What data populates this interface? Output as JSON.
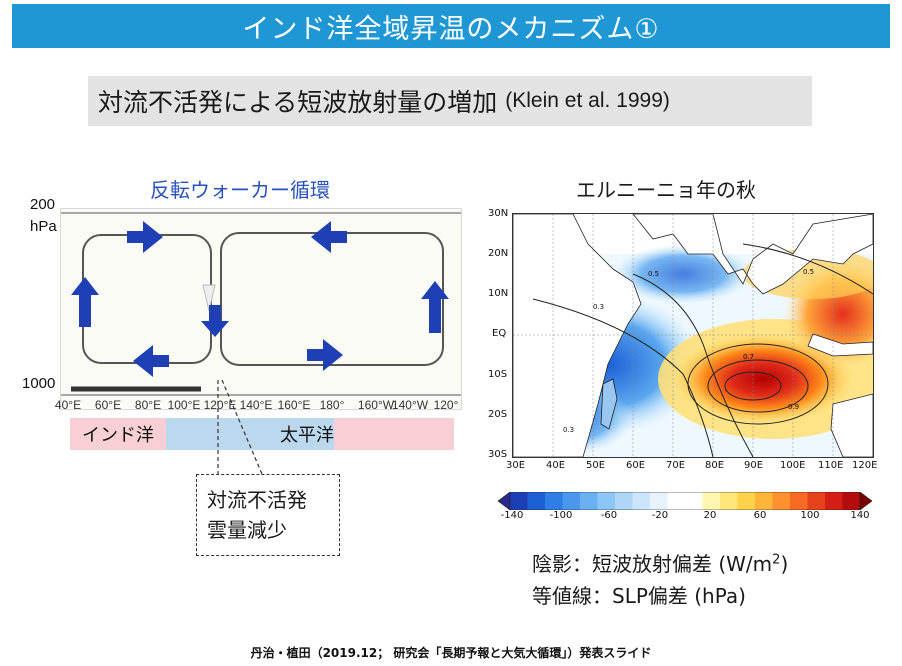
{
  "slide": {
    "title": "インド洋全域昇温のメカニズム①",
    "subtitle": "対流不活発による短波放射量の増加",
    "subtitle_ref": "(Klein et al. 1999)",
    "footer": "丹治・植田（2019.12； 研究会「長期予報と大気大循環」）発表スライド"
  },
  "walker_panel": {
    "title": "反転ウォーカー循環",
    "top_pressure_label": "200",
    "top_pressure_unit": "hPa",
    "bottom_pressure_label": "1000",
    "longitudes": [
      "40°E",
      "60°E",
      "80°E",
      "100°E",
      "120°E",
      "140°E",
      "160°E",
      "180°",
      "160°W",
      "140°W",
      "120°"
    ],
    "ocean_labels": {
      "indian": "インド洋",
      "pacific": "太平洋"
    },
    "callout_lines": [
      "対流不活発",
      "雲量減少"
    ],
    "arrow_color": "#1f3fb5"
  },
  "map_panel": {
    "title": "エルニーニョ年の秋",
    "lat_labels": [
      "30N",
      "20N",
      "10N",
      "EQ",
      "10S",
      "20S",
      "30S"
    ],
    "lon_labels": [
      "30E",
      "40E",
      "50E",
      "60E",
      "70E",
      "80E",
      "90E",
      "100E",
      "110E",
      "120E"
    ],
    "colorbar_ticks": [
      "-140",
      "-100",
      "-60",
      "-20",
      "20",
      "60",
      "100",
      "140"
    ],
    "contour_labels": [
      "0.3",
      "0.5",
      "0.7",
      "0.9",
      "0.5",
      "0.3"
    ],
    "legend_shading": "陰影：短波放射偏差 (W/m",
    "legend_shading_sup": "2",
    "legend_shading_end": ")",
    "legend_contour": "等値線：SLP偏差 (hPa)"
  }
}
